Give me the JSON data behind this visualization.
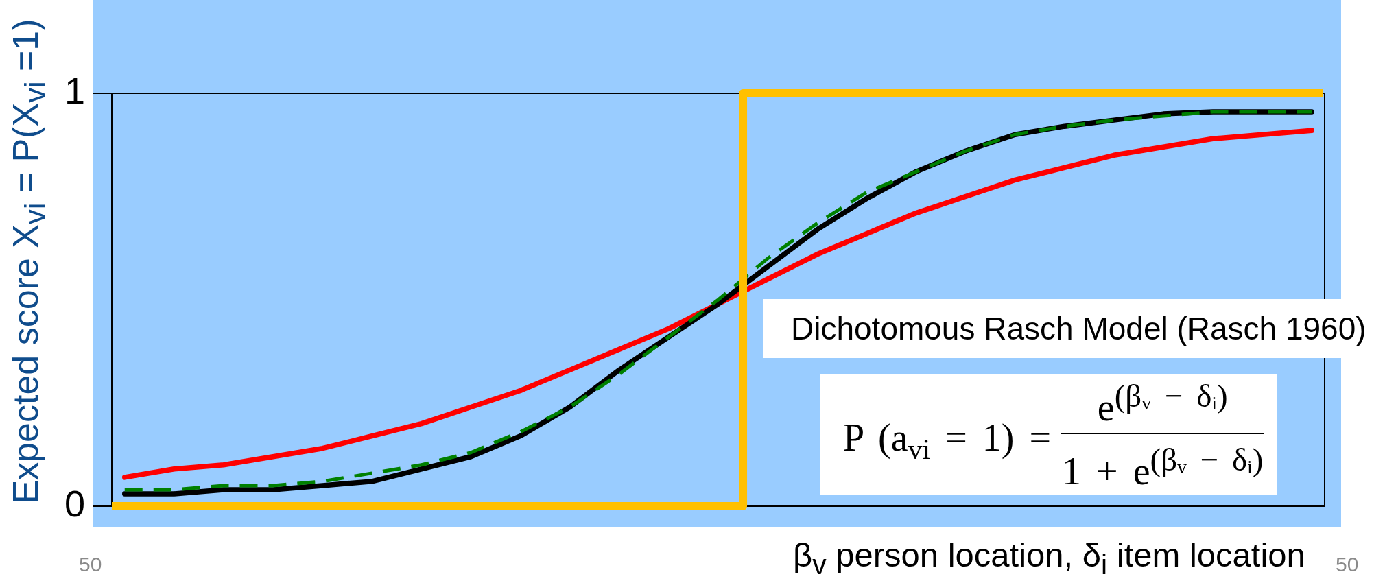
{
  "chart_data": {
    "type": "line",
    "categories": [
      null,
      null,
      null,
      null,
      null,
      null,
      null,
      null,
      null,
      null,
      null,
      null,
      null,
      null,
      null,
      null,
      null,
      null,
      null,
      null,
      null,
      null,
      null,
      null,
      null
    ],
    "series": [
      {
        "color": "#ff0000",
        "values": [
          0.07,
          0.09,
          0.1,
          0.12,
          0.14,
          0.17,
          0.2,
          0.24,
          0.28,
          0.33,
          0.38,
          0.43,
          0.49,
          0.55,
          0.61,
          0.66,
          0.71,
          0.75,
          0.79,
          0.82,
          0.85,
          0.87,
          0.89,
          0.9,
          0.91
        ]
      },
      {
        "color": "#000000",
        "values": [
          0.03,
          0.03,
          0.04,
          0.04,
          0.05,
          0.06,
          0.09,
          0.12,
          0.17,
          0.24,
          0.33,
          0.41,
          0.49,
          0.58,
          0.67,
          0.745,
          0.81,
          0.86,
          0.9,
          0.92,
          0.935,
          0.95,
          0.955,
          0.955,
          0.955
        ]
      },
      {
        "color": "#008000",
        "line_style": "dashed",
        "values": [
          0.04,
          0.04,
          0.05,
          0.05,
          0.06,
          0.08,
          0.1,
          0.13,
          0.18,
          0.24,
          0.32,
          0.41,
          0.5,
          0.6,
          0.685,
          0.76,
          0.81,
          0.86,
          0.9,
          0.92,
          0.935,
          0.945,
          0.955,
          0.955,
          0.955
        ]
      },
      {
        "type": "step",
        "color": "#ffc000",
        "values": [
          0,
          0,
          0,
          0,
          0,
          0,
          0,
          0,
          0,
          0,
          0,
          0,
          0,
          1,
          1,
          1,
          1,
          1,
          1,
          1,
          1,
          1,
          1,
          1,
          1
        ]
      }
    ],
    "ylim": [
      0,
      1
    ],
    "yticks": [
      0,
      1
    ],
    "ylabel": "Expected score X$_{vi}$ = P(X$_{vi}$ =1)",
    "xlabel": "β$_{v}$ person location, δ$_{i}$ item location",
    "tick_labels": "y",
    "marker": "none",
    "line_style": "solid",
    "annotations": [
      "Dichotomous Rasch Model (Rasch 1960)",
      "P (a$_{vi}$ = 1) =",
      "e$^{(βᵥ − δᵢ)}$",
      "1 + e$^{(βᵥ − δᵢ)}$",
      "50",
      "50"
    ]
  }
}
